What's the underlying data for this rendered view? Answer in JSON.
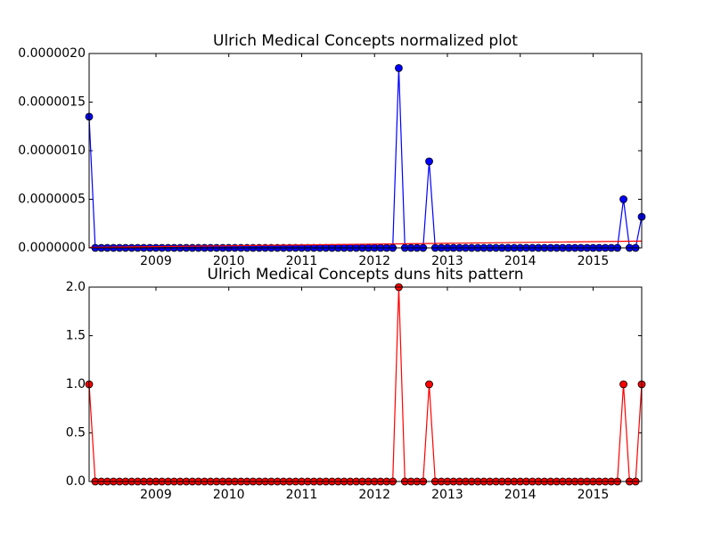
{
  "chart_data": [
    {
      "type": "line",
      "title": "Ulrich Medical Concepts normalized plot",
      "xlim": [
        2008.083,
        2015.667
      ],
      "xticks": [
        2009,
        2010,
        2011,
        2012,
        2013,
        2014,
        2015
      ],
      "ylim": [
        0,
        2e-06
      ],
      "yticks": [
        {
          "value": 0,
          "label": "0.0000000"
        },
        {
          "value": 5e-07,
          "label": "0.0000005"
        },
        {
          "value": 1e-06,
          "label": "0.0000010"
        },
        {
          "value": 1.5e-06,
          "label": "0.0000015"
        },
        {
          "value": 2e-06,
          "label": "0.0000020"
        }
      ],
      "series": [
        {
          "color": "#0000ff",
          "marker": true,
          "x": [
            2008.083,
            2008.167,
            2008.25,
            2008.333,
            2008.417,
            2008.5,
            2008.583,
            2008.667,
            2008.75,
            2008.833,
            2008.917,
            2009,
            2009.083,
            2009.167,
            2009.25,
            2009.333,
            2009.417,
            2009.5,
            2009.583,
            2009.667,
            2009.75,
            2009.833,
            2009.917,
            2010,
            2010.083,
            2010.167,
            2010.25,
            2010.333,
            2010.417,
            2010.5,
            2010.583,
            2010.667,
            2010.75,
            2010.833,
            2010.917,
            2011,
            2011.083,
            2011.167,
            2011.25,
            2011.333,
            2011.417,
            2011.5,
            2011.583,
            2011.667,
            2011.75,
            2011.833,
            2011.917,
            2012,
            2012.083,
            2012.167,
            2012.25,
            2012.333,
            2012.417,
            2012.5,
            2012.583,
            2012.667,
            2012.75,
            2012.833,
            2012.917,
            2013,
            2013.083,
            2013.167,
            2013.25,
            2013.333,
            2013.417,
            2013.5,
            2013.583,
            2013.667,
            2013.75,
            2013.833,
            2013.917,
            2014,
            2014.083,
            2014.167,
            2014.25,
            2014.333,
            2014.417,
            2014.5,
            2014.583,
            2014.667,
            2014.75,
            2014.833,
            2014.917,
            2015,
            2015.083,
            2015.167,
            2015.25,
            2015.333,
            2015.417,
            2015.5,
            2015.583,
            2015.667
          ],
          "values": [
            1.35e-06,
            0,
            0,
            0,
            0,
            0,
            0,
            0,
            0,
            0,
            0,
            0,
            0,
            0,
            0,
            0,
            0,
            0,
            0,
            0,
            0,
            0,
            0,
            0,
            0,
            0,
            0,
            0,
            0,
            0,
            0,
            0,
            0,
            0,
            0,
            0,
            0,
            0,
            0,
            0,
            0,
            0,
            0,
            0,
            0,
            0,
            0,
            0,
            0,
            0,
            0,
            1.85e-06,
            0,
            0,
            0,
            0,
            8.9e-07,
            0,
            0,
            0,
            0,
            0,
            0,
            0,
            0,
            0,
            0,
            0,
            0,
            0,
            0,
            0,
            0,
            0,
            0,
            0,
            0,
            0,
            0,
            0,
            0,
            0,
            0,
            0,
            0,
            0,
            0,
            0,
            5e-07,
            0,
            0,
            3.2e-07
          ]
        },
        {
          "color": "#ff0000",
          "marker": false,
          "x": [
            2008.083,
            2015.667
          ],
          "values": [
            5e-09,
            7e-08
          ]
        }
      ]
    },
    {
      "type": "line",
      "title": "Ulrich Medical Concepts duns hits pattern",
      "xlim": [
        2008.083,
        2015.667
      ],
      "xticks": [
        2009,
        2010,
        2011,
        2012,
        2013,
        2014,
        2015
      ],
      "ylim": [
        0,
        2
      ],
      "yticks": [
        {
          "value": 0,
          "label": "0.0"
        },
        {
          "value": 0.5,
          "label": "0.5"
        },
        {
          "value": 1,
          "label": "1.0"
        },
        {
          "value": 1.5,
          "label": "1.5"
        },
        {
          "value": 2,
          "label": "2.0"
        }
      ],
      "series": [
        {
          "color": "#ff0000",
          "marker": true,
          "x": [
            2008.083,
            2008.167,
            2008.25,
            2008.333,
            2008.417,
            2008.5,
            2008.583,
            2008.667,
            2008.75,
            2008.833,
            2008.917,
            2009,
            2009.083,
            2009.167,
            2009.25,
            2009.333,
            2009.417,
            2009.5,
            2009.583,
            2009.667,
            2009.75,
            2009.833,
            2009.917,
            2010,
            2010.083,
            2010.167,
            2010.25,
            2010.333,
            2010.417,
            2010.5,
            2010.583,
            2010.667,
            2010.75,
            2010.833,
            2010.917,
            2011,
            2011.083,
            2011.167,
            2011.25,
            2011.333,
            2011.417,
            2011.5,
            2011.583,
            2011.667,
            2011.75,
            2011.833,
            2011.917,
            2012,
            2012.083,
            2012.167,
            2012.25,
            2012.333,
            2012.417,
            2012.5,
            2012.583,
            2012.667,
            2012.75,
            2012.833,
            2012.917,
            2013,
            2013.083,
            2013.167,
            2013.25,
            2013.333,
            2013.417,
            2013.5,
            2013.583,
            2013.667,
            2013.75,
            2013.833,
            2013.917,
            2014,
            2014.083,
            2014.167,
            2014.25,
            2014.333,
            2014.417,
            2014.5,
            2014.583,
            2014.667,
            2014.75,
            2014.833,
            2014.917,
            2015,
            2015.083,
            2015.167,
            2015.25,
            2015.333,
            2015.417,
            2015.5,
            2015.583,
            2015.667
          ],
          "values": [
            1,
            0,
            0,
            0,
            0,
            0,
            0,
            0,
            0,
            0,
            0,
            0,
            0,
            0,
            0,
            0,
            0,
            0,
            0,
            0,
            0,
            0,
            0,
            0,
            0,
            0,
            0,
            0,
            0,
            0,
            0,
            0,
            0,
            0,
            0,
            0,
            0,
            0,
            0,
            0,
            0,
            0,
            0,
            0,
            0,
            0,
            0,
            0,
            0,
            0,
            0,
            2,
            0,
            0,
            0,
            0,
            1,
            0,
            0,
            0,
            0,
            0,
            0,
            0,
            0,
            0,
            0,
            0,
            0,
            0,
            0,
            0,
            0,
            0,
            0,
            0,
            0,
            0,
            0,
            0,
            0,
            0,
            0,
            0,
            0,
            0,
            0,
            0,
            1,
            0,
            0,
            1
          ]
        }
      ]
    }
  ]
}
